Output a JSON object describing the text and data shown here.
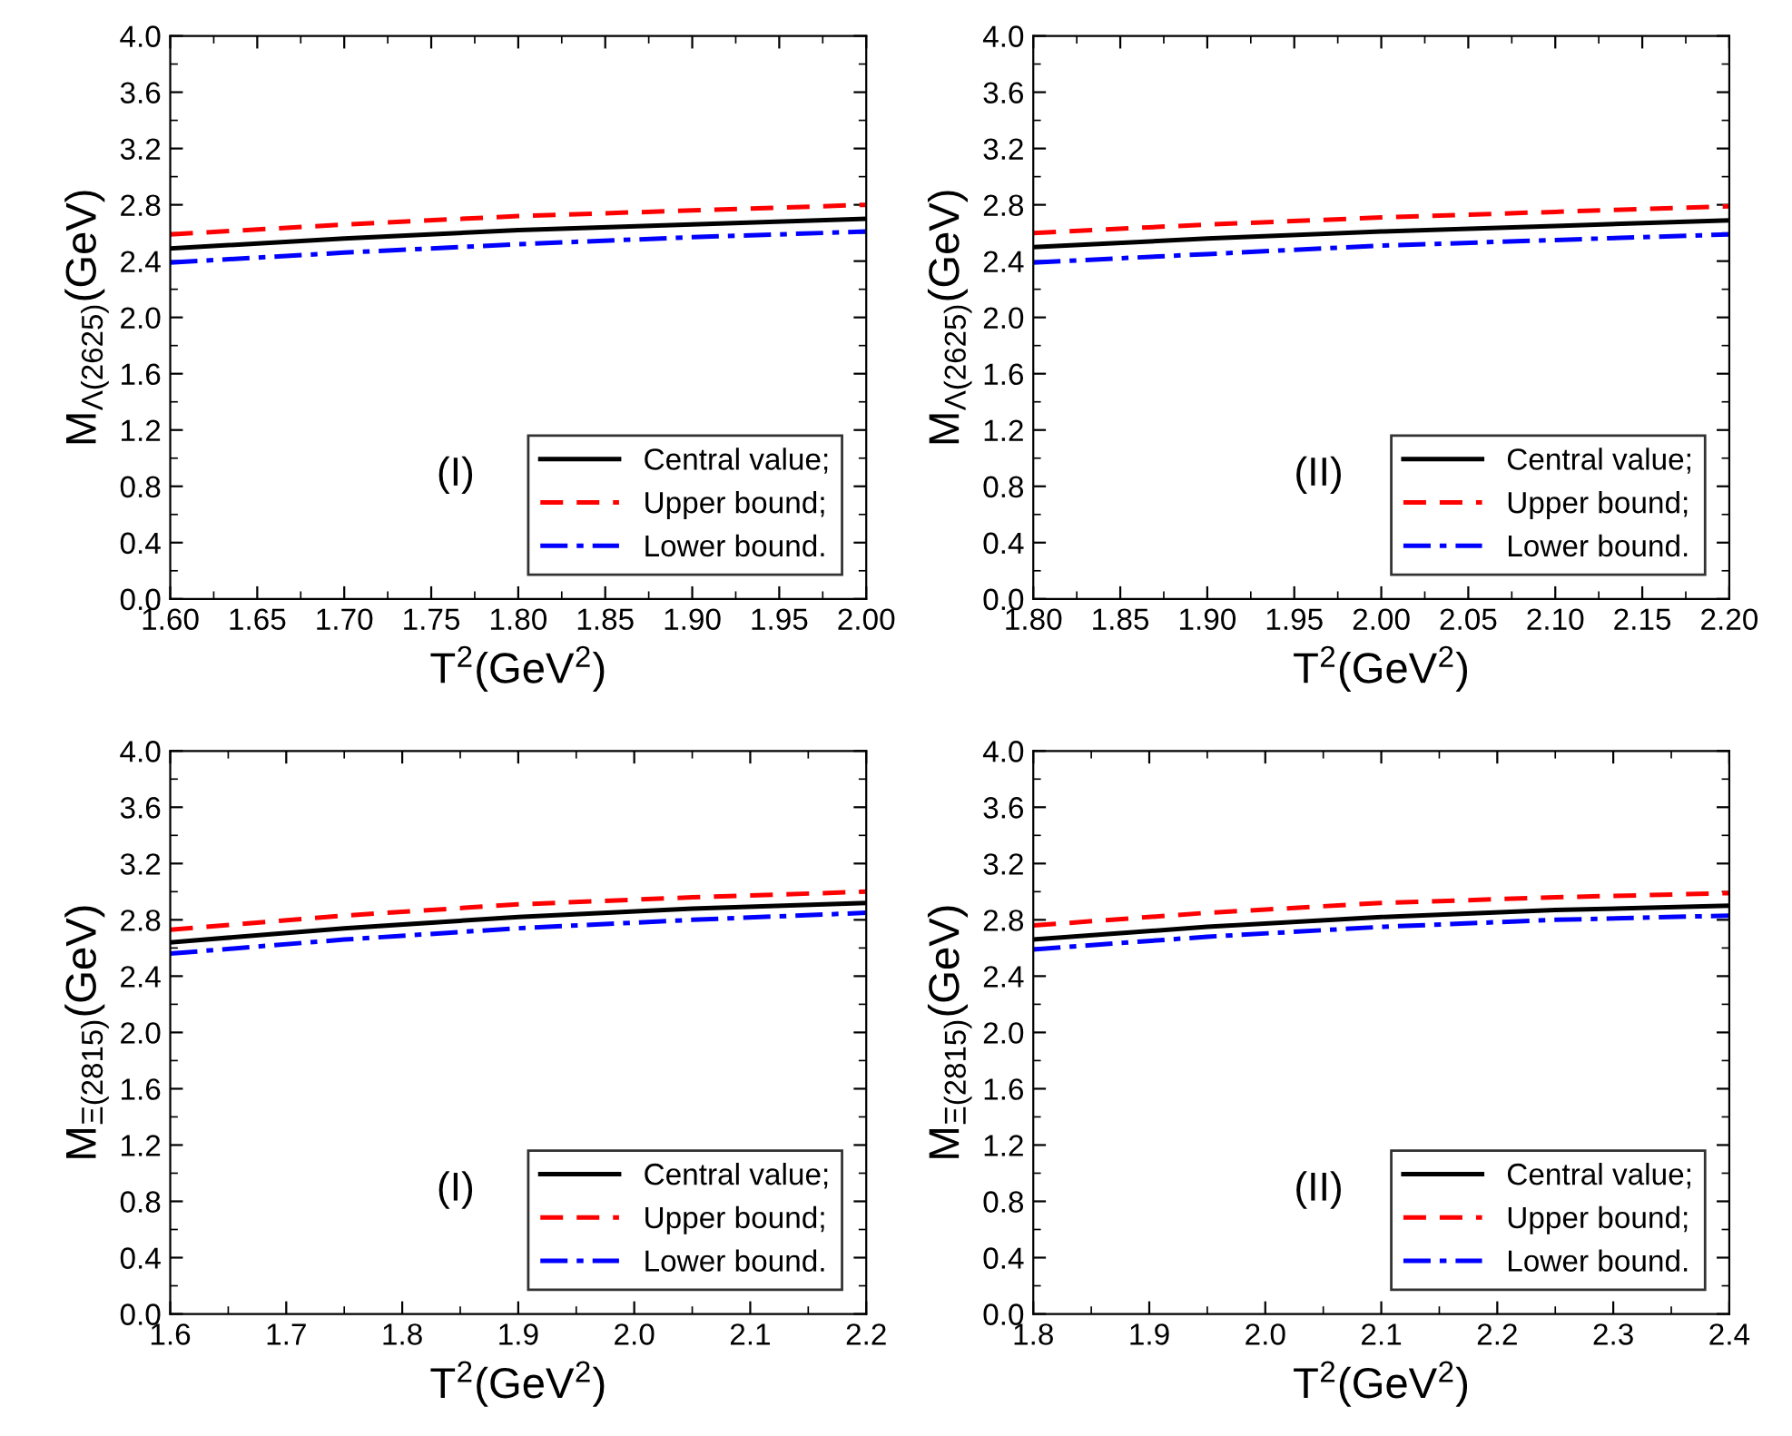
{
  "chart_data": [
    {
      "type": "line",
      "xlabel": "T$^{2}$(GeV$^{2}$)",
      "ylabel": "M$_{Λ(2625)}$(GeV)",
      "annotations": [
        "(I)"
      ],
      "x": [
        1.6,
        1.7,
        1.8,
        1.9,
        2.0
      ],
      "xlim": [
        1.6,
        2.0
      ],
      "xticks": [
        {
          "value": 1.6,
          "label": "1.60"
        },
        {
          "value": 1.65,
          "label": "1.65"
        },
        {
          "value": 1.7,
          "label": "1.70"
        },
        {
          "value": 1.75,
          "label": "1.75"
        },
        {
          "value": 1.8,
          "label": "1.80"
        },
        {
          "value": 1.85,
          "label": "1.85"
        },
        {
          "value": 1.9,
          "label": "1.90"
        },
        {
          "value": 1.95,
          "label": "1.95"
        },
        {
          "value": 2.0,
          "label": "2.00"
        }
      ],
      "ylim": [
        0,
        4
      ],
      "yticks": [
        {
          "value": 0,
          "label": "0.0"
        },
        0.4,
        0.8,
        1.2,
        1.6,
        {
          "value": 2,
          "label": "2.0"
        },
        2.4,
        2.8,
        3.2,
        3.6,
        {
          "value": 4,
          "label": "4.0"
        }
      ],
      "legend": "lower right",
      "grid": false,
      "series": [
        {
          "name": "Central value;",
          "color": "#000000",
          "line_style": "solid",
          "values": [
            2.49,
            2.56,
            2.62,
            2.66,
            2.7
          ]
        },
        {
          "name": "Upper bound;",
          "color": "#ff0000",
          "line_style": "dashed",
          "values": [
            2.59,
            2.66,
            2.72,
            2.76,
            2.8
          ]
        },
        {
          "name": "Lower bound.",
          "color": "#0000ff",
          "line_style": "dashdot",
          "values": [
            2.39,
            2.46,
            2.52,
            2.57,
            2.61
          ]
        }
      ]
    },
    {
      "type": "line",
      "xlabel": "T$^{2}$(GeV$^{2}$)",
      "ylabel": "M$_{Λ(2625)}$(GeV)",
      "annotations": [
        "(II)"
      ],
      "x": [
        1.8,
        1.9,
        2.0,
        2.1,
        2.2
      ],
      "xlim": [
        1.8,
        2.2
      ],
      "xticks": [
        {
          "value": 1.8,
          "label": "1.80"
        },
        {
          "value": 1.85,
          "label": "1.85"
        },
        {
          "value": 1.9,
          "label": "1.90"
        },
        {
          "value": 1.95,
          "label": "1.95"
        },
        {
          "value": 2.0,
          "label": "2.00"
        },
        {
          "value": 2.05,
          "label": "2.05"
        },
        {
          "value": 2.1,
          "label": "2.10"
        },
        {
          "value": 2.15,
          "label": "2.15"
        },
        {
          "value": 2.2,
          "label": "2.20"
        }
      ],
      "ylim": [
        0,
        4
      ],
      "yticks": [
        {
          "value": 0,
          "label": "0.0"
        },
        0.4,
        0.8,
        1.2,
        1.6,
        {
          "value": 2,
          "label": "2.0"
        },
        2.4,
        2.8,
        3.2,
        3.6,
        {
          "value": 4,
          "label": "4.0"
        }
      ],
      "legend": "lower right",
      "grid": false,
      "series": [
        {
          "name": "Central value;",
          "color": "#000000",
          "line_style": "solid",
          "values": [
            2.5,
            2.56,
            2.61,
            2.65,
            2.69
          ]
        },
        {
          "name": "Upper bound;",
          "color": "#ff0000",
          "line_style": "dashed",
          "values": [
            2.6,
            2.66,
            2.71,
            2.75,
            2.79
          ]
        },
        {
          "name": "Lower bound.",
          "color": "#0000ff",
          "line_style": "dashdot",
          "values": [
            2.39,
            2.45,
            2.51,
            2.55,
            2.59
          ]
        }
      ]
    },
    {
      "type": "line",
      "xlabel": "T$^{2}$(GeV$^{2}$)",
      "ylabel": "M$_{Ξ(2815)}$(GeV)",
      "annotations": [
        "(I)"
      ],
      "x": [
        1.6,
        1.75,
        1.9,
        2.05,
        2.2
      ],
      "xlim": [
        1.6,
        2.2
      ],
      "xticks": [
        1.6,
        1.7,
        1.8,
        1.9,
        {
          "value": 2.0,
          "label": "2.0"
        },
        2.1,
        2.2
      ],
      "ylim": [
        0,
        4
      ],
      "yticks": [
        {
          "value": 0,
          "label": "0.0"
        },
        0.4,
        0.8,
        1.2,
        1.6,
        {
          "value": 2,
          "label": "2.0"
        },
        2.4,
        2.8,
        3.2,
        3.6,
        {
          "value": 4,
          "label": "4.0"
        }
      ],
      "legend": "lower right",
      "grid": false,
      "series": [
        {
          "name": "Central value;",
          "color": "#000000",
          "line_style": "solid",
          "values": [
            2.64,
            2.74,
            2.82,
            2.88,
            2.92
          ]
        },
        {
          "name": "Upper bound;",
          "color": "#ff0000",
          "line_style": "dashed",
          "values": [
            2.73,
            2.83,
            2.91,
            2.96,
            3.0
          ]
        },
        {
          "name": "Lower bound.",
          "color": "#0000ff",
          "line_style": "dashdot",
          "values": [
            2.56,
            2.66,
            2.74,
            2.8,
            2.85
          ]
        }
      ]
    },
    {
      "type": "line",
      "xlabel": "T$^{2}$(GeV$^{2}$)",
      "ylabel": "M$_{Ξ(2815)}$(GeV)",
      "annotations": [
        "(II)"
      ],
      "x": [
        1.8,
        1.95,
        2.1,
        2.25,
        2.4
      ],
      "xlim": [
        1.8,
        2.4
      ],
      "xticks": [
        1.8,
        1.9,
        {
          "value": 2.0,
          "label": "2.0"
        },
        2.1,
        2.2,
        2.3,
        2.4
      ],
      "ylim": [
        0,
        4
      ],
      "yticks": [
        {
          "value": 0,
          "label": "0.0"
        },
        0.4,
        0.8,
        1.2,
        1.6,
        {
          "value": 2,
          "label": "2.0"
        },
        2.4,
        2.8,
        3.2,
        3.6,
        {
          "value": 4,
          "label": "4.0"
        }
      ],
      "legend": "lower right",
      "grid": false,
      "series": [
        {
          "name": "Central value;",
          "color": "#000000",
          "line_style": "solid",
          "values": [
            2.66,
            2.75,
            2.82,
            2.87,
            2.9
          ]
        },
        {
          "name": "Upper bound;",
          "color": "#ff0000",
          "line_style": "dashed",
          "values": [
            2.76,
            2.85,
            2.92,
            2.96,
            2.99
          ]
        },
        {
          "name": "Lower bound.",
          "color": "#0000ff",
          "line_style": "dashdot",
          "values": [
            2.59,
            2.68,
            2.75,
            2.8,
            2.83
          ]
        }
      ]
    }
  ]
}
